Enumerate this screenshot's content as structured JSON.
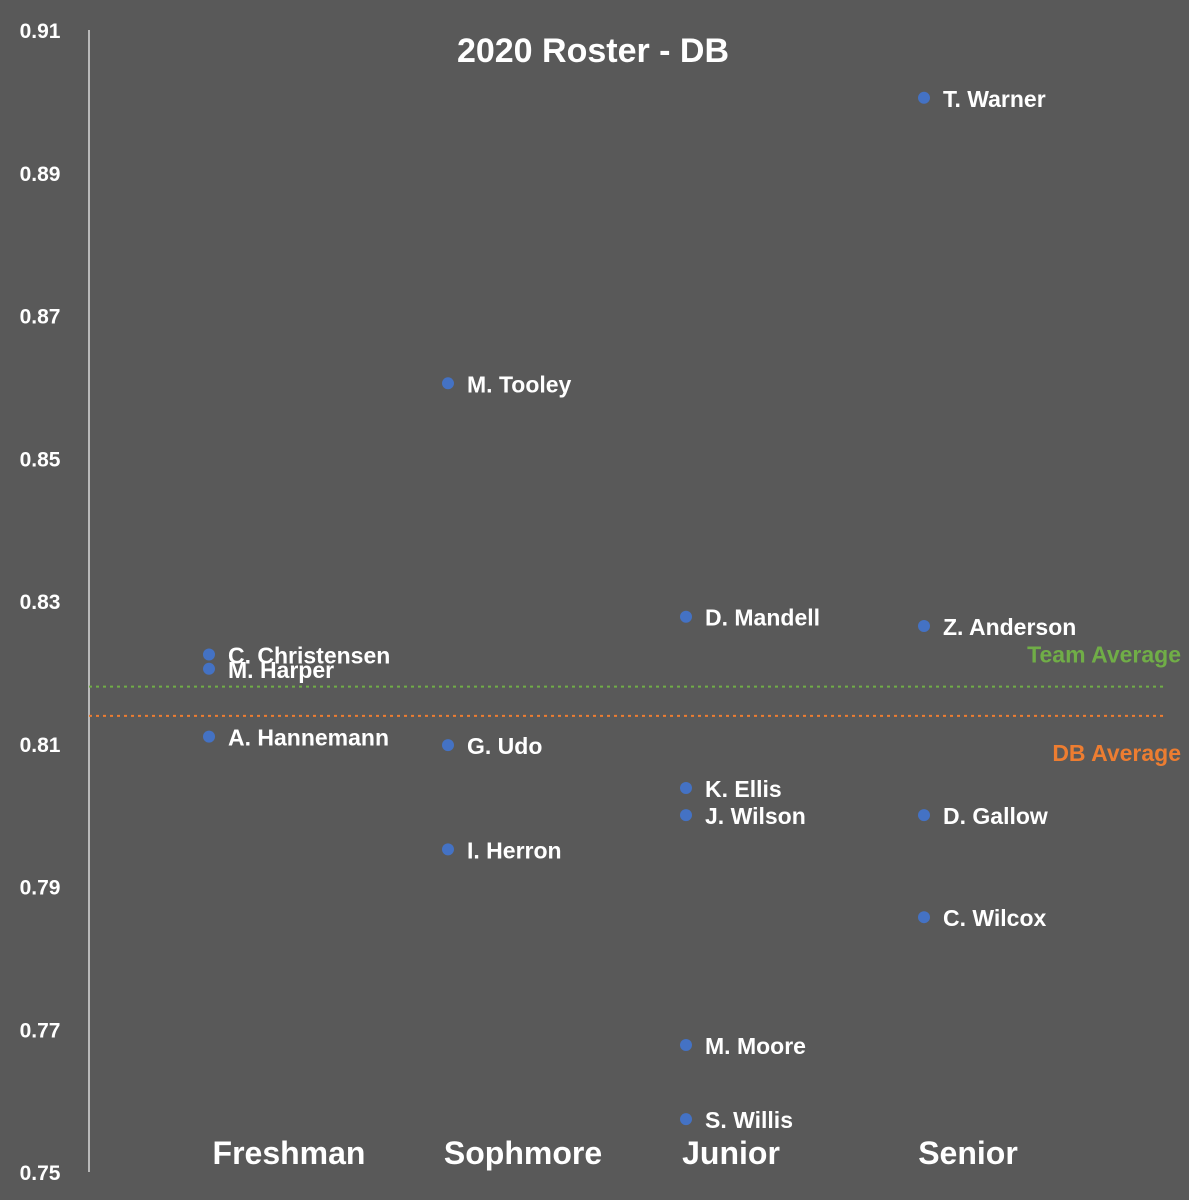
{
  "chart_data": {
    "type": "scatter",
    "title": "2020 Roster - DB",
    "ylim": [
      0.75,
      0.91
    ],
    "yticks": [
      "0.91",
      "0.89",
      "0.87",
      "0.85",
      "0.83",
      "0.81",
      "0.79",
      "0.77",
      "0.75"
    ],
    "categories": [
      "Freshman",
      "Sophmore",
      "Junior",
      "Senior"
    ],
    "grid": false,
    "points": [
      {
        "label": "C. Christensen",
        "category": "Freshman",
        "y": 0.8225
      },
      {
        "label": "M. Harper",
        "category": "Freshman",
        "y": 0.8205
      },
      {
        "label": "A. Hannemann",
        "category": "Freshman",
        "y": 0.811
      },
      {
        "label": "M. Tooley",
        "category": "Sophmore",
        "y": 0.8605
      },
      {
        "label": "G. Udo",
        "category": "Sophmore",
        "y": 0.8098
      },
      {
        "label": "I. Herron",
        "category": "Sophmore",
        "y": 0.7952
      },
      {
        "label": "D. Mandell",
        "category": "Junior",
        "y": 0.8278
      },
      {
        "label": "K. Ellis",
        "category": "Junior",
        "y": 0.8038
      },
      {
        "label": "J. Wilson",
        "category": "Junior",
        "y": 0.8
      },
      {
        "label": "M. Moore",
        "category": "Junior",
        "y": 0.7678
      },
      {
        "label": "S. Willis",
        "category": "Junior",
        "y": 0.7574
      },
      {
        "label": "T. Warner",
        "category": "Senior",
        "y": 0.9005
      },
      {
        "label": "Z. Anderson",
        "category": "Senior",
        "y": 0.8265
      },
      {
        "label": "D. Gallow",
        "category": "Senior",
        "y": 0.8
      },
      {
        "label": "C. Wilcox",
        "category": "Senior",
        "y": 0.7857
      }
    ],
    "reference_lines": [
      {
        "name": "Team Average",
        "y": 0.818,
        "color": "#70ad47"
      },
      {
        "name": "DB Average",
        "y": 0.8139,
        "color": "#ed7d31"
      }
    ],
    "point_color": "#4472c4",
    "text_color": "#ffffff"
  }
}
